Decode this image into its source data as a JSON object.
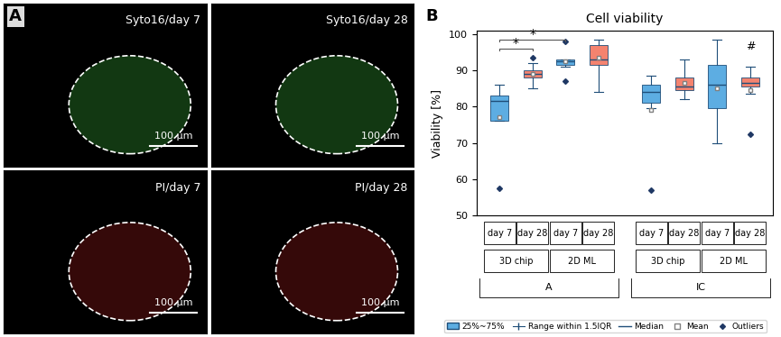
{
  "panel_a": {
    "panel_label": "A",
    "scale_bar": "100 µm",
    "images": [
      {
        "label": "Syto16/day 7"
      },
      {
        "label": "Syto16/day 28"
      },
      {
        "label": "PI/day 7"
      },
      {
        "label": "PI/day 28"
      }
    ]
  },
  "chart_data": {
    "type": "box",
    "panel_label": "B",
    "title": "Cell viability",
    "y_label": "Viability [%]",
    "ylim": [
      50,
      101
    ],
    "yticks": [
      50,
      60,
      70,
      80,
      90,
      100
    ],
    "boxes": [
      {
        "group": "A",
        "subgroup": "3D chip",
        "label": "day 7",
        "color": "#5dade2",
        "q1": 76,
        "median": 81.7,
        "q3": 83,
        "whislo": 76,
        "whishi": 86,
        "mean": 77,
        "outliers": [
          57.5
        ]
      },
      {
        "group": "A",
        "subgroup": "3D chip",
        "label": "day 28",
        "color": "#f4836f",
        "q1": 88,
        "median": 89,
        "q3": 90,
        "whislo": 85,
        "whishi": 92,
        "mean": 89,
        "outliers": [
          93.5
        ]
      },
      {
        "group": "A",
        "subgroup": "2D ML",
        "label": "day 7",
        "color": "#5dade2",
        "q1": 91.5,
        "median": 92.5,
        "q3": 93,
        "whislo": 91,
        "whishi": 93,
        "mean": 92.5,
        "outliers": [
          87,
          98
        ]
      },
      {
        "group": "A",
        "subgroup": "2D ML",
        "label": "day 28",
        "color": "#f4836f",
        "q1": 91.5,
        "median": 93,
        "q3": 97,
        "whislo": 84,
        "whishi": 98.5,
        "mean": 93.5,
        "outliers": []
      },
      {
        "group": "IC",
        "subgroup": "3D chip",
        "label": "day 7",
        "color": "#5dade2",
        "q1": 81,
        "median": 84,
        "q3": 86,
        "whislo": 79.5,
        "whishi": 88.5,
        "mean": 79,
        "outliers": [
          57
        ]
      },
      {
        "group": "IC",
        "subgroup": "3D chip",
        "label": "day 28",
        "color": "#f4836f",
        "q1": 84.5,
        "median": 85.5,
        "q3": 88,
        "whislo": 82,
        "whishi": 93,
        "mean": 86.5,
        "outliers": []
      },
      {
        "group": "IC",
        "subgroup": "2D ML",
        "label": "day 7",
        "color": "#5dade2",
        "q1": 79.5,
        "median": 86,
        "q3": 91.5,
        "whislo": 70,
        "whishi": 98.5,
        "mean": 85,
        "outliers": []
      },
      {
        "group": "IC",
        "subgroup": "2D ML",
        "label": "day 28",
        "color": "#f4836f",
        "q1": 85.5,
        "median": 86.5,
        "q3": 88,
        "whislo": 83.5,
        "whishi": 91,
        "mean": 84.5,
        "outliers": [
          72.5
        ]
      }
    ],
    "significance": [
      {
        "text": "*",
        "from": 0,
        "to": 1,
        "y": 96
      },
      {
        "text": "*",
        "from": 0,
        "to": 2,
        "y": 98.5
      }
    ],
    "box_marks": [
      {
        "text": "#",
        "box": 7,
        "y": 95
      }
    ],
    "legend_labels": [
      "25%~75%",
      "Range within 1.5IQR",
      "Median",
      "Mean",
      "Outliers"
    ]
  }
}
